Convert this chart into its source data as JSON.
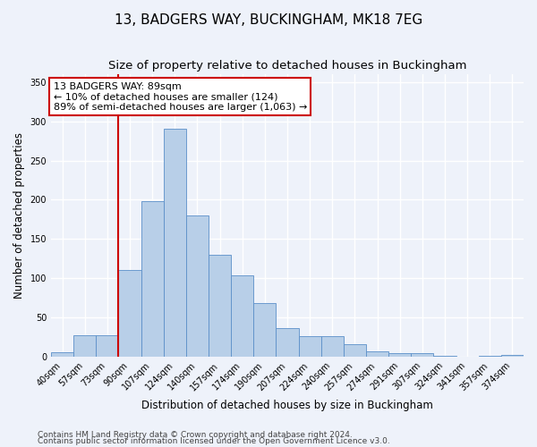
{
  "title": "13, BADGERS WAY, BUCKINGHAM, MK18 7EG",
  "subtitle": "Size of property relative to detached houses in Buckingham",
  "xlabel": "Distribution of detached houses by size in Buckingham",
  "ylabel": "Number of detached properties",
  "categories": [
    "40sqm",
    "57sqm",
    "73sqm",
    "90sqm",
    "107sqm",
    "124sqm",
    "140sqm",
    "157sqm",
    "174sqm",
    "190sqm",
    "207sqm",
    "224sqm",
    "240sqm",
    "257sqm",
    "274sqm",
    "291sqm",
    "307sqm",
    "324sqm",
    "341sqm",
    "357sqm",
    "374sqm"
  ],
  "values": [
    5,
    27,
    27,
    110,
    198,
    290,
    180,
    130,
    103,
    68,
    36,
    26,
    26,
    16,
    7,
    4,
    4,
    1,
    0,
    1,
    2
  ],
  "bar_color": "#b8cfe8",
  "bar_edge_color": "#5b8fc9",
  "property_line_x": 2.5,
  "annotation_label": "13 BADGERS WAY: 89sqm",
  "annotation_line2": "← 10% of detached houses are smaller (124)",
  "annotation_line3": "89% of semi-detached houses are larger (1,063) →",
  "annotation_box_color": "#ffffff",
  "annotation_box_edge_color": "#cc0000",
  "red_line_color": "#cc0000",
  "ylim": [
    0,
    360
  ],
  "yticks": [
    0,
    50,
    100,
    150,
    200,
    250,
    300,
    350
  ],
  "footer_line1": "Contains HM Land Registry data © Crown copyright and database right 2024.",
  "footer_line2": "Contains public sector information licensed under the Open Government Licence v3.0.",
  "background_color": "#eef2fa",
  "grid_color": "#ffffff",
  "title_fontsize": 11,
  "subtitle_fontsize": 9.5,
  "axis_label_fontsize": 8.5,
  "tick_fontsize": 7,
  "footer_fontsize": 6.5,
  "annotation_fontsize": 8
}
